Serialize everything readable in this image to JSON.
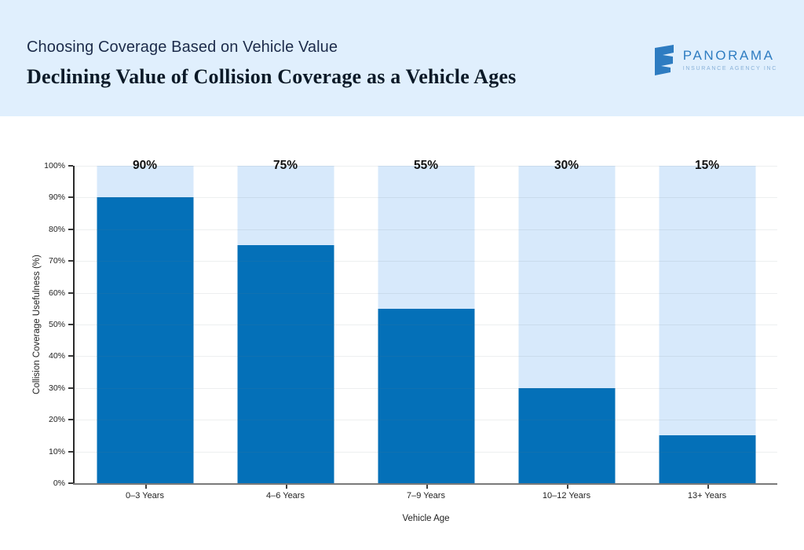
{
  "header": {
    "subtitle": "Choosing Coverage Based on Vehicle Value",
    "title": "Declining Value of Collision Coverage as a Vehicle Ages",
    "logo": {
      "name": "PANORAMA",
      "tagline": "INSURANCE AGENCY INC",
      "icon": "ribbon-mark-icon",
      "icon_color": "#2e7cc1"
    }
  },
  "chart_data": {
    "type": "bar",
    "title": "Declining Value of Collision Coverage as a Vehicle Ages",
    "categories": [
      "0–3 Years",
      "4–6 Years",
      "7–9 Years",
      "10–12 Years",
      "13+ Years"
    ],
    "values": [
      90,
      75,
      55,
      30,
      15
    ],
    "bar_labels": [
      "90%",
      "75%",
      "55%",
      "30%",
      "15%"
    ],
    "xlabel": "Vehicle Age",
    "ylabel": "Collision Coverage Usefulness (%)",
    "ylim": [
      0,
      100
    ],
    "yticks": [
      0,
      10,
      20,
      30,
      40,
      50,
      60,
      70,
      80,
      90,
      100
    ],
    "ytick_labels": [
      "0%",
      "10%",
      "20%",
      "30%",
      "40%",
      "50%",
      "60%",
      "70%",
      "80%",
      "90%",
      "100%"
    ],
    "grid": true,
    "legend": "none",
    "bar_background_full_height": true,
    "colors": {
      "bar": "#0470b8",
      "bar_background": "#d7e9fb",
      "value_label": "#111111",
      "header_band": "#e0effd",
      "page_background": "#ffffff"
    }
  }
}
